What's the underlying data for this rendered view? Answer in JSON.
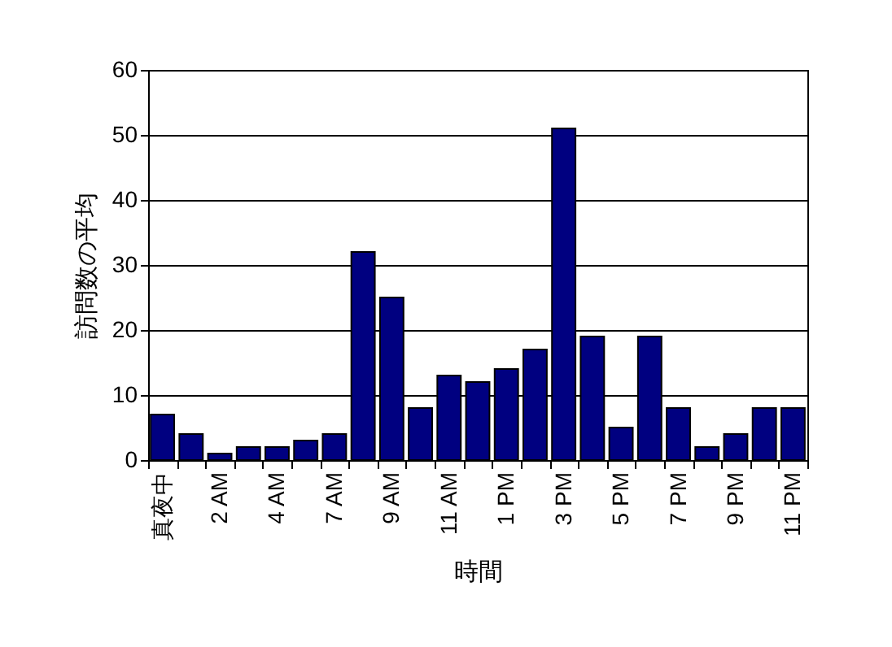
{
  "chart_data": {
    "type": "bar",
    "xlabel": "時間",
    "ylabel": "訪問数の平均",
    "categories": [
      "真夜中",
      null,
      "2 AM",
      null,
      "4 AM",
      null,
      "7 AM",
      null,
      "9 AM",
      null,
      "11 AM",
      null,
      "1 PM",
      null,
      "3 PM",
      null,
      "5 PM",
      null,
      "7 PM",
      null,
      "9 PM",
      null,
      "11 PM"
    ],
    "values": [
      7,
      4,
      1,
      2,
      2,
      3,
      4,
      32,
      25,
      8,
      13,
      12,
      14,
      17,
      51,
      19,
      5,
      19,
      8,
      2,
      4,
      8,
      8
    ],
    "color": "#000080",
    "ylim": [
      0,
      60
    ],
    "yticks": [
      0,
      10,
      20,
      30,
      40,
      50,
      60
    ],
    "grid": "y"
  }
}
